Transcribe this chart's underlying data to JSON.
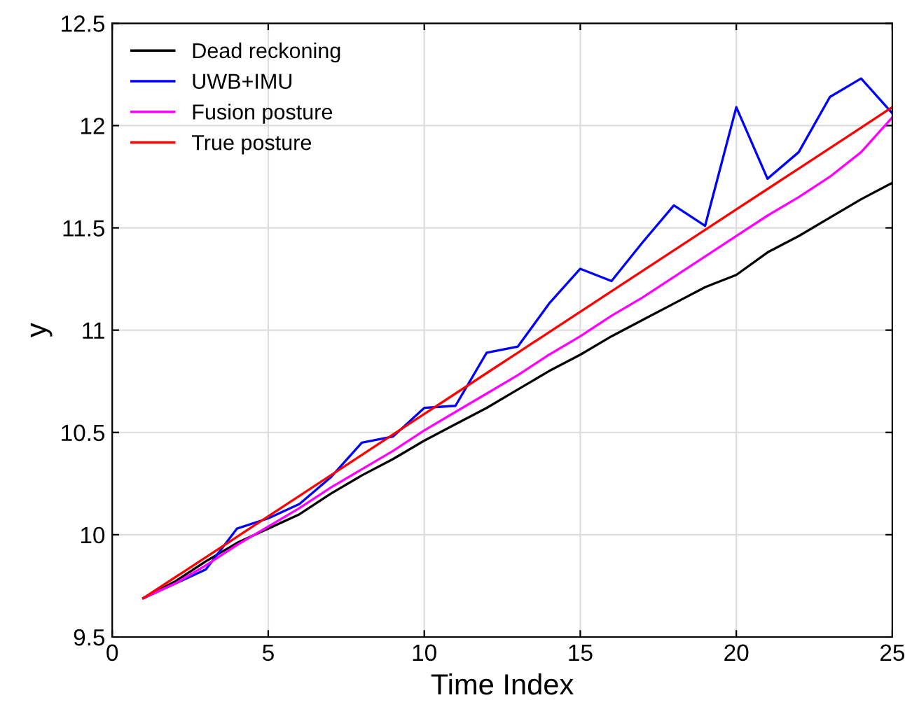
{
  "chart_data": {
    "type": "line",
    "xlabel": "Time Index",
    "ylabel": "y",
    "x": [
      1,
      2,
      3,
      4,
      5,
      6,
      7,
      8,
      9,
      10,
      11,
      12,
      13,
      14,
      15,
      16,
      17,
      18,
      19,
      20,
      21,
      22,
      23,
      24,
      25
    ],
    "series": [
      {
        "name": "Dead reckoning",
        "color": "#000000",
        "values": [
          9.69,
          9.77,
          9.87,
          9.96,
          10.03,
          10.1,
          10.2,
          10.29,
          10.37,
          10.46,
          10.54,
          10.62,
          10.71,
          10.8,
          10.88,
          10.97,
          11.05,
          11.13,
          11.21,
          11.27,
          11.38,
          11.46,
          11.55,
          11.64,
          11.72
        ]
      },
      {
        "name": "UWB+IMU",
        "color": "#0000ff",
        "values": [
          9.69,
          9.76,
          9.83,
          10.03,
          10.08,
          10.15,
          10.28,
          10.45,
          10.48,
          10.62,
          10.63,
          10.89,
          10.92,
          11.13,
          11.3,
          11.24,
          11.43,
          11.61,
          11.51,
          12.09,
          11.74,
          11.87,
          12.14,
          12.23,
          12.06
        ]
      },
      {
        "name": "Fusion posture",
        "color": "#ff00ff",
        "values": [
          9.69,
          9.76,
          9.85,
          9.95,
          10.04,
          10.13,
          10.23,
          10.32,
          10.41,
          10.51,
          10.6,
          10.69,
          10.78,
          10.88,
          10.97,
          11.07,
          11.16,
          11.26,
          11.36,
          11.46,
          11.56,
          11.65,
          11.75,
          11.87,
          12.04
        ]
      },
      {
        "name": "True posture",
        "color": "#ff0000",
        "values": [
          9.69,
          9.79,
          9.89,
          9.99,
          10.09,
          10.19,
          10.29,
          10.39,
          10.49,
          10.59,
          10.69,
          10.79,
          10.89,
          10.99,
          11.09,
          11.19,
          11.29,
          11.39,
          11.49,
          11.59,
          11.69,
          11.79,
          11.89,
          11.99,
          12.09
        ]
      }
    ],
    "xlim": [
      0,
      25
    ],
    "xticks": [
      0,
      5,
      10,
      15,
      20,
      25
    ],
    "ylim": [
      9.5,
      12.5
    ],
    "yticks": [
      9.5,
      10,
      10.5,
      11,
      11.5,
      12,
      12.5
    ],
    "grid": true,
    "legend": "top left",
    "marker": "none",
    "line_style": "solid"
  }
}
